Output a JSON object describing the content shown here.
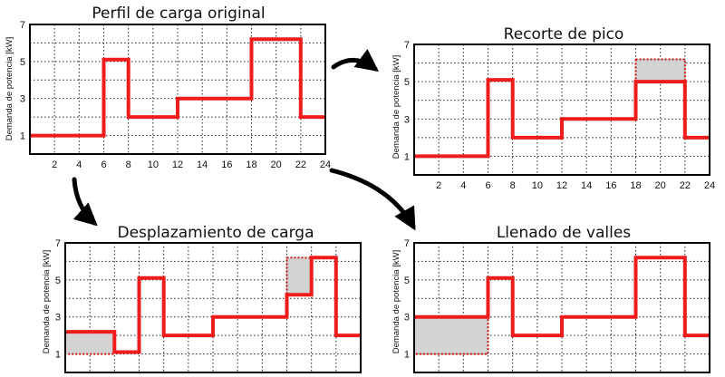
{
  "chart_data": [
    {
      "id": "orig",
      "type": "line",
      "title": "Perfil de carga original",
      "xlabel": "",
      "ylabel": "Demanda de potencia [kW]",
      "xlim": [
        0,
        24
      ],
      "ylim": [
        0,
        7
      ],
      "x_ticks": [
        2,
        4,
        6,
        8,
        10,
        12,
        14,
        16,
        18,
        20,
        22,
        24
      ],
      "y_ticks": [
        1,
        3,
        5,
        7
      ],
      "grid": true,
      "series": [
        {
          "x": [
            0,
            6,
            6,
            8,
            8,
            12,
            12,
            18,
            18,
            22,
            22,
            24
          ],
          "y": [
            1,
            1,
            5.1,
            5.1,
            2,
            2,
            3,
            3,
            6.2,
            6.2,
            2,
            2
          ]
        }
      ],
      "shaded": []
    },
    {
      "id": "peak",
      "type": "line",
      "title": "Recorte de pico",
      "xlabel": "",
      "ylabel": "Demanda de potencia [kW]",
      "xlim": [
        0,
        24
      ],
      "ylim": [
        0,
        7
      ],
      "x_ticks": [
        2,
        4,
        6,
        8,
        10,
        12,
        14,
        16,
        18,
        20,
        22,
        24
      ],
      "y_ticks": [
        1,
        3,
        5,
        7
      ],
      "grid": true,
      "series": [
        {
          "x": [
            0,
            6,
            6,
            8,
            8,
            12,
            12,
            18,
            18,
            22,
            22,
            24
          ],
          "y": [
            1,
            1,
            5.1,
            5.1,
            2,
            2,
            3,
            3,
            5,
            5,
            2,
            2
          ]
        }
      ],
      "shaded": [
        {
          "x0": 18,
          "x1": 22,
          "y0": 5,
          "y1": 6.2
        }
      ]
    },
    {
      "id": "shift",
      "type": "line",
      "title": "Desplazamiento de carga",
      "xlabel": "",
      "ylabel": "Demanda de potencia [kW]",
      "xlim": [
        0,
        24
      ],
      "ylim": [
        0,
        7
      ],
      "x_ticks": [],
      "y_ticks": [
        1,
        3,
        5,
        7
      ],
      "grid": true,
      "series": [
        {
          "x": [
            0,
            4,
            4,
            6,
            6,
            8,
            8,
            12,
            12,
            18,
            18,
            20,
            20,
            22,
            22,
            24
          ],
          "y": [
            2.2,
            2.2,
            1.1,
            1.1,
            5.1,
            5.1,
            2,
            2,
            3,
            3,
            4.2,
            4.2,
            6.2,
            6.2,
            2,
            2
          ]
        }
      ],
      "shaded": [
        {
          "x0": 0,
          "x1": 4,
          "y0": 1,
          "y1": 2.2
        },
        {
          "x0": 18,
          "x1": 20,
          "y0": 4.2,
          "y1": 6.2
        }
      ]
    },
    {
      "id": "valley",
      "type": "line",
      "title": "Llenado de valles",
      "xlabel": "",
      "ylabel": "Demanda de potencia [kW]",
      "xlim": [
        0,
        24
      ],
      "ylim": [
        0,
        7
      ],
      "x_ticks": [],
      "y_ticks": [
        1,
        3,
        5,
        7
      ],
      "grid": true,
      "series": [
        {
          "x": [
            0,
            6,
            6,
            8,
            8,
            12,
            12,
            18,
            18,
            22,
            22,
            24
          ],
          "y": [
            3,
            3,
            5.1,
            5.1,
            2,
            2,
            3,
            3,
            6.2,
            6.2,
            2,
            2
          ]
        }
      ],
      "shaded": [
        {
          "x0": 0,
          "x1": 6,
          "y0": 1,
          "y1": 3
        }
      ]
    }
  ],
  "colors": {
    "profile": "#ee1c1c",
    "shade_fill": "#d3d3d3",
    "shade_border": "#cc1111",
    "grid": "#222222",
    "axes": "#000000",
    "arrow": "#000000"
  }
}
